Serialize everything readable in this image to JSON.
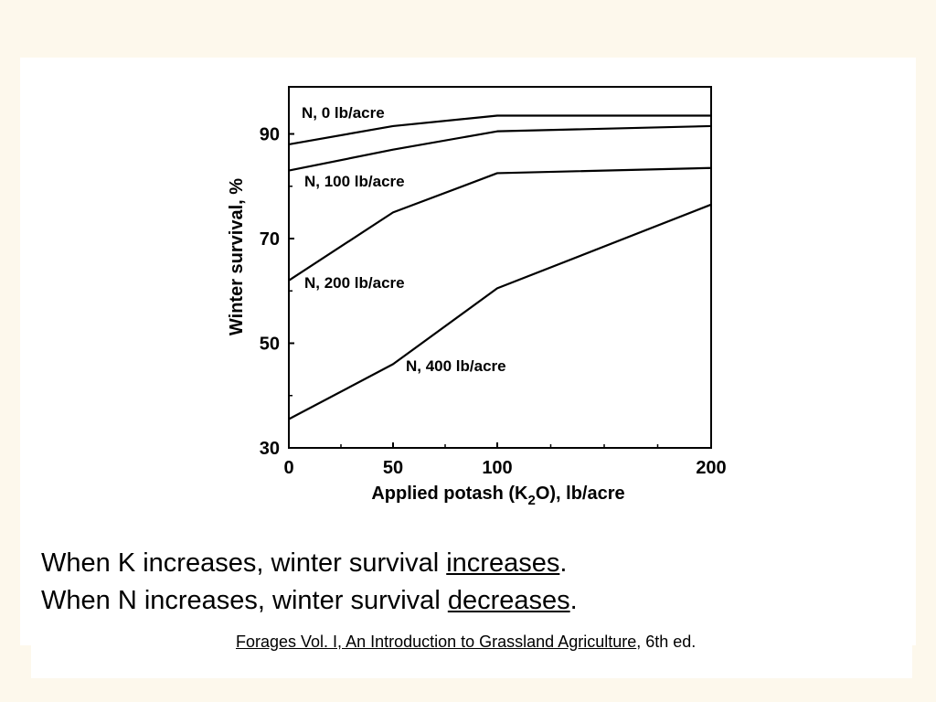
{
  "slide": {
    "statement1": {
      "prefix": "When K increases, winter survival ",
      "emphasis": "increases",
      "suffix": "."
    },
    "statement2": {
      "prefix": "When N increases, winter survival ",
      "emphasis": "decreases",
      "suffix": "."
    },
    "citation": {
      "title": "Forages  Vol. I,  An Introduction to Grassland Agriculture",
      "edition": ", 6th ed."
    }
  },
  "chart_data": {
    "type": "line",
    "title": "",
    "xlabel": "Applied potash (K",
    "xlabel_sub": "2",
    "xlabel_tail": "O), lb/acre",
    "ylabel": "Winter survival, %",
    "x_ticks": [
      "0",
      "50",
      "100",
      "200"
    ],
    "y_ticks": [
      "30",
      "50",
      "70",
      "90"
    ],
    "x_categories": [
      0,
      50,
      100,
      200
    ],
    "ylim": [
      30,
      99
    ],
    "grid": false,
    "colors": {
      "line": "#000000",
      "axis": "#000000"
    },
    "series": [
      {
        "name": "N, 0 lb/acre",
        "x": [
          0,
          50,
          100,
          200
        ],
        "y": [
          88,
          91.5,
          93.5,
          93.5
        ]
      },
      {
        "name": "N, 100 lb/acre",
        "x": [
          0,
          50,
          100,
          200
        ],
        "y": [
          83,
          87,
          90.5,
          91.5
        ]
      },
      {
        "name": "N, 200 lb/acre",
        "x": [
          0,
          50,
          100,
          200
        ],
        "y": [
          62,
          75,
          82.5,
          83.5
        ]
      },
      {
        "name": "N, 400 lb/acre",
        "x": [
          0,
          50,
          100,
          200
        ],
        "y": [
          35.5,
          46,
          60.5,
          76.5
        ]
      }
    ]
  }
}
